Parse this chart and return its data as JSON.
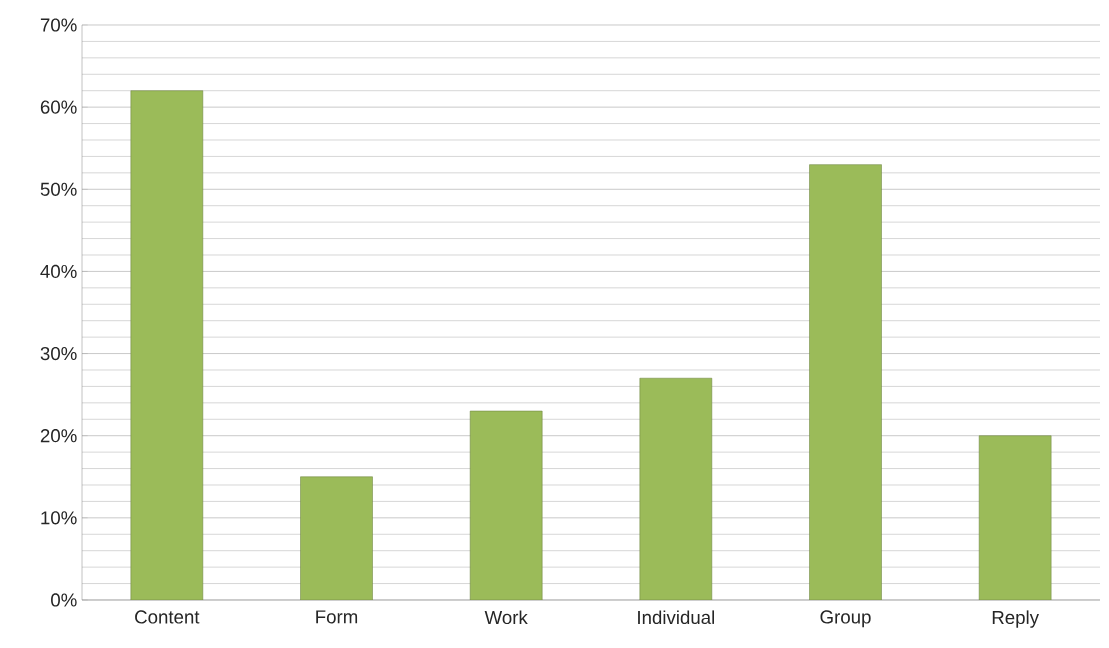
{
  "chart_data": {
    "type": "bar",
    "categories": [
      "Content",
      "Form",
      "Work",
      "Individual",
      "Group",
      "Reply"
    ],
    "values": [
      62,
      15,
      23,
      27,
      53,
      20
    ],
    "color": "#9bbb59",
    "ylim": [
      0,
      70
    ],
    "yticks": [
      {
        "value": 0,
        "label": "0%"
      },
      {
        "value": 10,
        "label": "10%"
      },
      {
        "value": 20,
        "label": "20%"
      },
      {
        "value": 30,
        "label": "30%"
      },
      {
        "value": 40,
        "label": "40%"
      },
      {
        "value": 50,
        "label": "50%"
      },
      {
        "value": 60,
        "label": "60%"
      },
      {
        "value": 70,
        "label": "70%"
      }
    ],
    "grid": "y"
  }
}
